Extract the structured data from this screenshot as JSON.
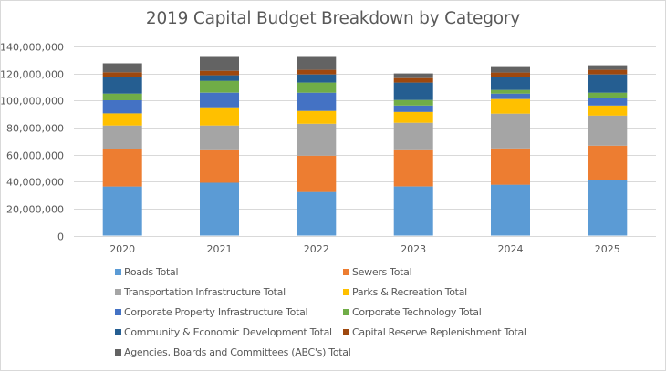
{
  "chart_data": {
    "type": "bar",
    "stacked": true,
    "title": "2019 Capital Budget Breakdown by Category",
    "xlabel": "",
    "ylabel": "",
    "ylim": [
      0,
      140000000
    ],
    "y_ticks": [
      0,
      20000000,
      40000000,
      60000000,
      80000000,
      100000000,
      120000000,
      140000000
    ],
    "y_tick_labels": [
      "0",
      "20,000,000",
      "40,000,000",
      "60,000,000",
      "80,000,000",
      "100,000,000",
      "120,000,000",
      "140,000,000"
    ],
    "grid": true,
    "legend_position": "bottom",
    "categories": [
      "2020",
      "2021",
      "2022",
      "2023",
      "2024",
      "2025"
    ],
    "series": [
      {
        "name": "Roads Total",
        "color": "#5b9bd5",
        "values": [
          36400000,
          39100000,
          32300000,
          36400000,
          37700000,
          40900000
        ]
      },
      {
        "name": "Sewers Total",
        "color": "#ed7d31",
        "values": [
          27700000,
          24100000,
          26900000,
          26800000,
          26900000,
          25700000
        ]
      },
      {
        "name": "Transportation Infrastructure Total",
        "color": "#a5a5a5",
        "values": [
          17400000,
          18300000,
          23600000,
          20300000,
          25700000,
          22300000
        ]
      },
      {
        "name": "Parks & Recreation Total",
        "color": "#ffc000",
        "values": [
          9000000,
          13500000,
          9500000,
          8100000,
          10800000,
          7400000
        ]
      },
      {
        "name": "Corporate Property  Infrastructure Total",
        "color": "#4472c4",
        "values": [
          9700000,
          10800000,
          13500000,
          4700000,
          4000000,
          5500000
        ]
      },
      {
        "name": "Corporate Technology Total",
        "color": "#70ad47",
        "values": [
          4900000,
          8800000,
          7500000,
          4100000,
          2700000,
          4000000
        ]
      },
      {
        "name": "Community & Economic Development Total",
        "color": "#255e91",
        "values": [
          12400000,
          4100000,
          6000000,
          12900000,
          9500000,
          13500000
        ]
      },
      {
        "name": "Capital Reserve Replenishment Total",
        "color": "#9e480e",
        "values": [
          3400000,
          3300000,
          3400000,
          3300000,
          3400000,
          3400000
        ]
      },
      {
        "name": "Agencies, Boards and Committees (ABC's) Total",
        "color": "#636363",
        "values": [
          6600000,
          10900000,
          10200000,
          3400000,
          4700000,
          3400000
        ]
      }
    ]
  }
}
